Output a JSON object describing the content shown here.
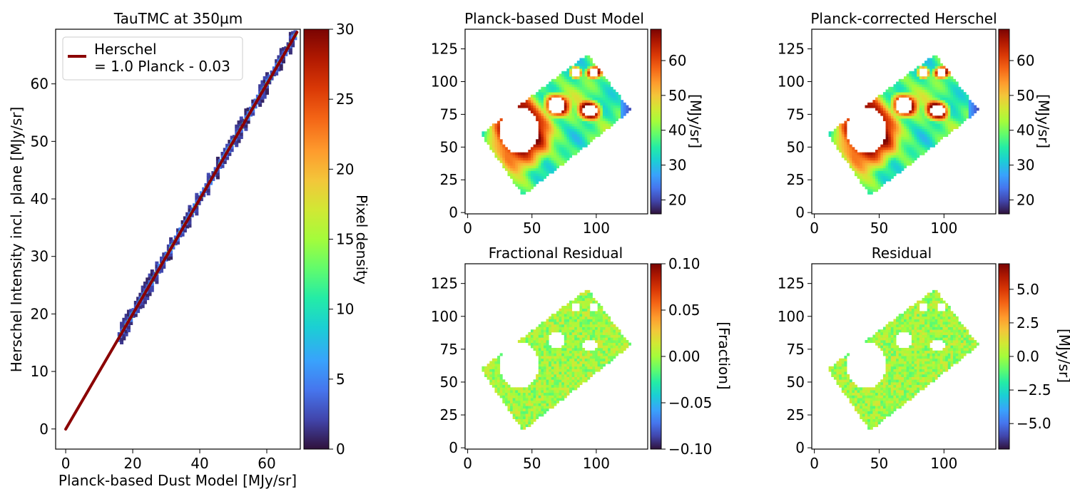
{
  "chart_data": [
    {
      "type": "heatmap",
      "title": "TauTMC at 350µm",
      "xlabel": "Planck-based Dust Model [MJy/sr]",
      "ylabel": "Herschel Intensity incl. plane [MJy/sr]",
      "xlim": [
        -3,
        70
      ],
      "ylim": [
        -3.5,
        69.5
      ],
      "xticks": [
        0,
        20,
        40,
        60
      ],
      "yticks": [
        0,
        10,
        20,
        30,
        40,
        50,
        60
      ],
      "grid": false,
      "legend_position": "top-left",
      "fit_line": {
        "label_line1": "Herschel",
        "label_line2": "= 1.0 Planck - 0.03",
        "slope": 1.0,
        "intercept": -0.03,
        "x": [
          0,
          69
        ],
        "color": "#8b0000"
      },
      "density_band": {
        "x_range": [
          16,
          69
        ],
        "slope": 1.0,
        "intercept": -0.03
      },
      "colorbar": {
        "label": "Pixel density",
        "range": [
          0,
          30
        ],
        "ticks": [
          0,
          5,
          10,
          15,
          20,
          25,
          30
        ],
        "colormap": "turbo"
      }
    },
    {
      "type": "heatmap",
      "title": "Planck-based Dust Model",
      "xlim": [
        -2,
        140
      ],
      "ylim": [
        -1,
        140
      ],
      "xticks": [
        0,
        50,
        100
      ],
      "yticks": [
        0,
        25,
        50,
        75,
        100,
        125
      ],
      "colorbar": {
        "label": "[MJy/sr]",
        "range": [
          16,
          69
        ],
        "ticks": [
          20,
          30,
          40,
          50,
          60
        ],
        "colormap": "turbo"
      }
    },
    {
      "type": "heatmap",
      "title": "Planck-corrected Herschel",
      "xlim": [
        -2,
        140
      ],
      "ylim": [
        -1,
        140
      ],
      "xticks": [
        0,
        50,
        100
      ],
      "yticks": [
        0,
        25,
        50,
        75,
        100,
        125
      ],
      "colorbar": {
        "label": "[MJy/sr]",
        "range": [
          16,
          69
        ],
        "ticks": [
          20,
          30,
          40,
          50,
          60
        ],
        "colormap": "turbo"
      }
    },
    {
      "type": "heatmap",
      "title": "Fractional Residual",
      "xlim": [
        -2,
        140
      ],
      "ylim": [
        -1,
        140
      ],
      "xticks": [
        0,
        50,
        100
      ],
      "yticks": [
        0,
        25,
        50,
        75,
        100,
        125
      ],
      "colorbar": {
        "label": "[Fraction]",
        "range": [
          -0.1,
          0.1
        ],
        "ticks": [
          "−0.10",
          "−0.05",
          "0.00",
          "0.05",
          "0.10"
        ],
        "tick_values": [
          -0.1,
          -0.05,
          0,
          0.05,
          0.1
        ],
        "colormap": "turbo"
      }
    },
    {
      "type": "heatmap",
      "title": "Residual",
      "xlim": [
        -2,
        140
      ],
      "ylim": [
        -1,
        140
      ],
      "xticks": [
        0,
        50,
        100
      ],
      "yticks": [
        0,
        25,
        50,
        75,
        100,
        125
      ],
      "colorbar": {
        "label": "[MJy/sr]",
        "range": [
          -6.9,
          6.9
        ],
        "ticks": [
          "−5.0",
          "−2.5",
          "0.0",
          "2.5",
          "5.0"
        ],
        "tick_values": [
          -5,
          -2.5,
          0,
          2.5,
          5
        ],
        "colormap": "turbo"
      }
    }
  ]
}
